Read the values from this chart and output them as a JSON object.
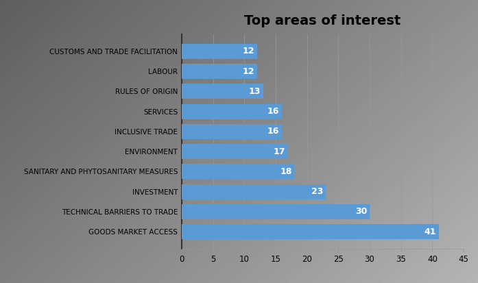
{
  "title": "Top areas of interest",
  "categories": [
    "GOODS MARKET ACCESS",
    "TECHNICAL BARRIERS TO TRADE",
    "INVESTMENT",
    "SANITARY AND PHYTOSANITARY MEASURES",
    "ENVIRONMENT",
    "INCLUSIVE TRADE",
    "SERVICES",
    "RULES OF ORIGIN",
    "LABOUR",
    "CUSTOMS AND TRADE FACILITATION"
  ],
  "values": [
    41,
    30,
    23,
    18,
    17,
    16,
    16,
    13,
    12,
    12
  ],
  "bar_color": "#5B9BD5",
  "label_color": "#FFFFFF",
  "xlim": [
    0,
    45
  ],
  "xticks": [
    0,
    5,
    10,
    15,
    20,
    25,
    30,
    35,
    40,
    45
  ],
  "bg_light": "#E8E8E8",
  "bg_dark": "#C8C8C8",
  "title_fontsize": 14,
  "label_fontsize": 7.5,
  "value_fontsize": 9
}
